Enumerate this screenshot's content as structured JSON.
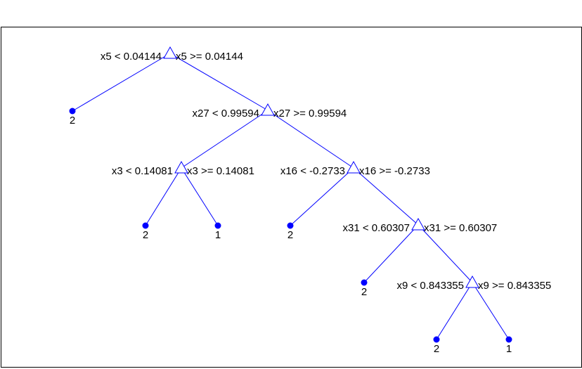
{
  "colors": {
    "edge": "#0000ff",
    "node": "#0000ff",
    "text": "#000000",
    "axes": "#000000",
    "background": "#ffffff"
  },
  "tree": {
    "nodes": [
      {
        "id": "n1",
        "kind": "branch",
        "left_rule": "x5 < 0.04144",
        "right_rule": "x5 >= 0.04144"
      },
      {
        "id": "n2",
        "kind": "leaf",
        "label": "2"
      },
      {
        "id": "n3",
        "kind": "branch",
        "left_rule": "x27 < 0.99594",
        "right_rule": "x27 >= 0.99594"
      },
      {
        "id": "n4",
        "kind": "branch",
        "left_rule": "x3 < 0.14081",
        "right_rule": "x3 >= 0.14081"
      },
      {
        "id": "n5",
        "kind": "branch",
        "left_rule": "x16 < -0.2733",
        "right_rule": "x16 >= -0.2733"
      },
      {
        "id": "n6",
        "kind": "leaf",
        "label": "2"
      },
      {
        "id": "n7",
        "kind": "leaf",
        "label": "1"
      },
      {
        "id": "n8",
        "kind": "leaf",
        "label": "2"
      },
      {
        "id": "n9",
        "kind": "branch",
        "left_rule": "x31 < 0.60307",
        "right_rule": "x31 >= 0.60307"
      },
      {
        "id": "n10",
        "kind": "leaf",
        "label": "2"
      },
      {
        "id": "n11",
        "kind": "branch",
        "left_rule": "x9 < 0.843355",
        "right_rule": "x9 >= 0.843355"
      },
      {
        "id": "n12",
        "kind": "leaf",
        "label": "2"
      },
      {
        "id": "n13",
        "kind": "leaf",
        "label": "1"
      }
    ],
    "edges": [
      [
        "n1",
        "n2"
      ],
      [
        "n1",
        "n3"
      ],
      [
        "n3",
        "n4"
      ],
      [
        "n3",
        "n5"
      ],
      [
        "n4",
        "n6"
      ],
      [
        "n4",
        "n7"
      ],
      [
        "n5",
        "n8"
      ],
      [
        "n5",
        "n9"
      ],
      [
        "n9",
        "n10"
      ],
      [
        "n9",
        "n11"
      ],
      [
        "n11",
        "n12"
      ],
      [
        "n11",
        "n13"
      ]
    ]
  }
}
